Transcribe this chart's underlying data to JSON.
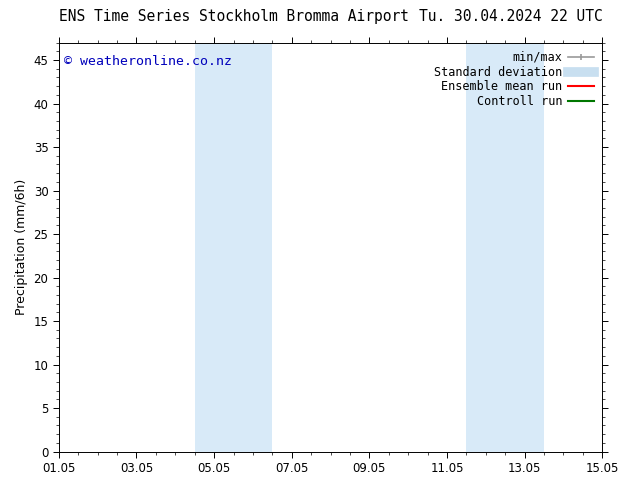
{
  "title_left": "ENS Time Series Stockholm Bromma Airport",
  "title_right": "Tu. 30.04.2024 22 UTC",
  "ylabel": "Precipitation (mm/6h)",
  "ylim": [
    0,
    47
  ],
  "yticks": [
    0,
    5,
    10,
    15,
    20,
    25,
    30,
    35,
    40,
    45
  ],
  "xtick_labels": [
    "01.05",
    "03.05",
    "05.05",
    "07.05",
    "09.05",
    "11.05",
    "13.05",
    "15.05"
  ],
  "xtick_positions": [
    0,
    2,
    4,
    6,
    8,
    10,
    12,
    14
  ],
  "xlim": [
    0,
    14
  ],
  "watermark": "© weatheronline.co.nz",
  "watermark_color": "#0000bb",
  "bg_color": "#ffffff",
  "plot_bg_color": "#ffffff",
  "shaded_regions": [
    {
      "x_start": 3.5,
      "x_end": 5.5,
      "color": "#d8eaf8"
    },
    {
      "x_start": 10.5,
      "x_end": 12.5,
      "color": "#d8eaf8"
    }
  ],
  "legend_items": [
    {
      "label": "min/max",
      "color": "#999999",
      "lw": 1.2
    },
    {
      "label": "Standard deviation",
      "color": "#c8dff0",
      "lw": 7
    },
    {
      "label": "Ensemble mean run",
      "color": "#ff0000",
      "lw": 1.5
    },
    {
      "label": "Controll run",
      "color": "#007700",
      "lw": 1.5
    }
  ],
  "title_fontsize": 10.5,
  "axis_label_fontsize": 9,
  "tick_fontsize": 8.5,
  "legend_fontsize": 8.5,
  "watermark_fontsize": 9.5
}
